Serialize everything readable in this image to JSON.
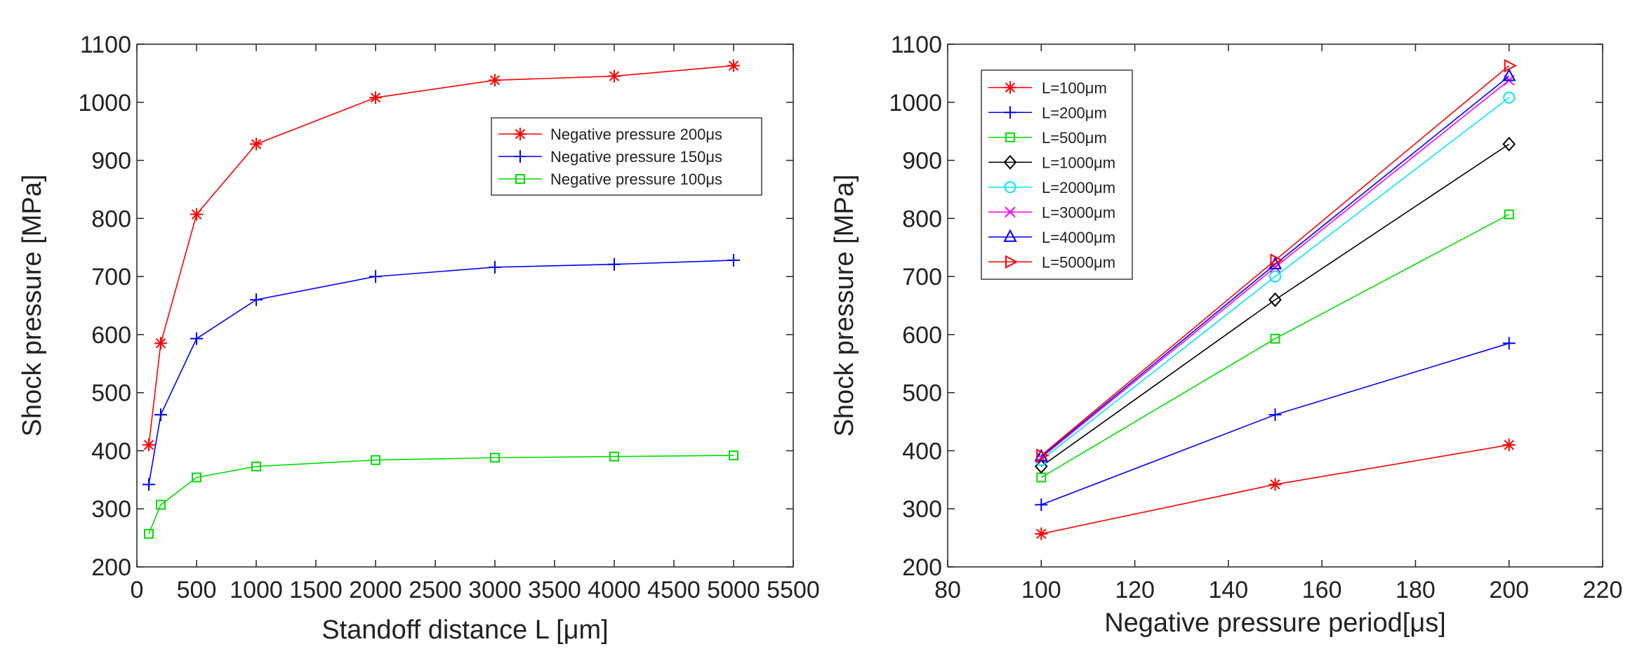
{
  "chart_data": [
    {
      "type": "line",
      "title": "",
      "xlabel": "Standoff distance L [μm]",
      "ylabel": "Shock pressure [MPa]",
      "xlim": [
        0,
        5500
      ],
      "ylim": [
        200,
        1100
      ],
      "xticks": [
        "0",
        "500",
        "1000",
        "1500",
        "2000",
        "2500",
        "3000",
        "3500",
        "4000",
        "4500",
        "5000",
        "5500"
      ],
      "yticks": [
        "200",
        "300",
        "400",
        "500",
        "600",
        "700",
        "800",
        "900",
        "1000",
        "1100"
      ],
      "grid": false,
      "legend_position": "upper-right",
      "x": [
        100,
        200,
        500,
        1000,
        2000,
        3000,
        4000,
        5000
      ],
      "series": [
        {
          "name": "Negative pressure 200μs",
          "color": "#ff0000",
          "marker": "asterisk",
          "values": [
            410,
            585,
            807,
            928,
            1008,
            1038,
            1045,
            1063
          ]
        },
        {
          "name": "Negative pressure 150μs",
          "color": "#0000ff",
          "marker": "plus",
          "values": [
            342,
            462,
            593,
            660,
            700,
            716,
            721,
            728
          ]
        },
        {
          "name": "Negative pressure 100μs",
          "color": "#00dd00",
          "marker": "square",
          "values": [
            257,
            307,
            354,
            373,
            384,
            388,
            390,
            392
          ]
        }
      ]
    },
    {
      "type": "line",
      "title": "",
      "xlabel": "Negative pressure period[μs]",
      "ylabel": "Shock pressure [MPa]",
      "xlim": [
        80,
        220
      ],
      "ylim": [
        200,
        1100
      ],
      "xticks": [
        "80",
        "100",
        "120",
        "140",
        "160",
        "180",
        "200",
        "220"
      ],
      "yticks": [
        "200",
        "300",
        "400",
        "500",
        "600",
        "700",
        "800",
        "900",
        "1000",
        "1100"
      ],
      "grid": false,
      "legend_position": "upper-left",
      "x": [
        100,
        150,
        200
      ],
      "series": [
        {
          "name": "L=100μm",
          "color": "#ff0000",
          "marker": "asterisk",
          "values": [
            257,
            342,
            410
          ]
        },
        {
          "name": "L=200μm",
          "color": "#0000ff",
          "marker": "plus",
          "values": [
            307,
            462,
            585
          ]
        },
        {
          "name": "L=500μm",
          "color": "#00dd00",
          "marker": "square",
          "values": [
            354,
            593,
            807
          ]
        },
        {
          "name": "L=1000μm",
          "color": "#000000",
          "marker": "diamond",
          "values": [
            373,
            660,
            928
          ]
        },
        {
          "name": "L=2000μm",
          "color": "#00e5ff",
          "marker": "circle",
          "values": [
            384,
            700,
            1008
          ]
        },
        {
          "name": "L=3000μm",
          "color": "#ff00ff",
          "marker": "cross",
          "values": [
            388,
            716,
            1038
          ]
        },
        {
          "name": "L=4000μm",
          "color": "#0000ff",
          "marker": "triangle",
          "values": [
            390,
            721,
            1045
          ]
        },
        {
          "name": "L=5000μm",
          "color": "#ff0000",
          "marker": "triangle-right",
          "values": [
            392,
            728,
            1063
          ]
        }
      ]
    }
  ]
}
